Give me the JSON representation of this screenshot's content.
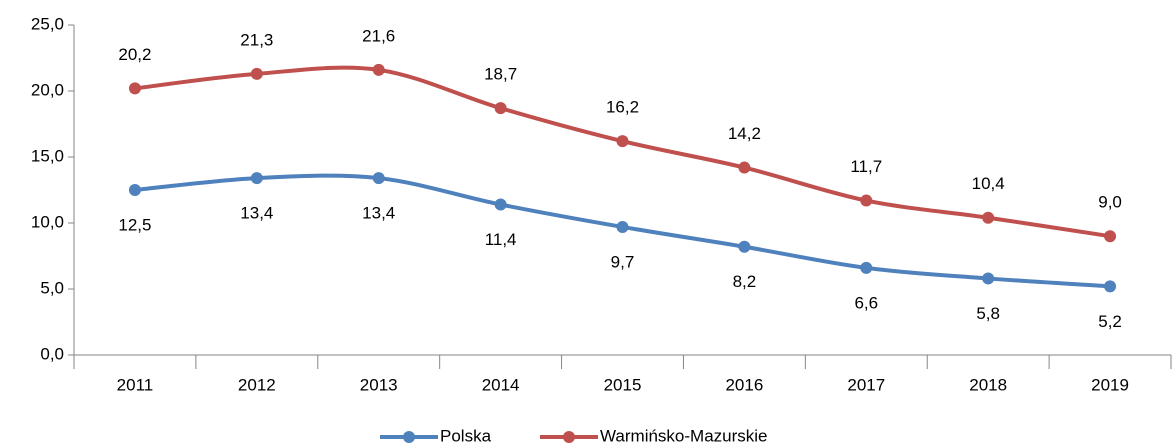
{
  "chart_data": {
    "type": "line",
    "categories": [
      "2011",
      "2012",
      "2013",
      "2014",
      "2015",
      "2016",
      "2017",
      "2018",
      "2019"
    ],
    "series": [
      {
        "name": "Polska",
        "color": "#4f81bd",
        "values": [
          12.5,
          13.4,
          13.4,
          11.4,
          9.7,
          8.2,
          6.6,
          5.8,
          5.2
        ],
        "value_labels": [
          "12,5",
          "13,4",
          "13,4",
          "11,4",
          "9,7",
          "8,2",
          "6,6",
          "5,8",
          "5,2"
        ]
      },
      {
        "name": "Warmińsko-Mazurskie",
        "color": "#c0504d",
        "values": [
          20.2,
          21.3,
          21.6,
          18.7,
          16.2,
          14.2,
          11.7,
          10.4,
          9.0
        ],
        "value_labels": [
          "20,2",
          "21,3",
          "21,6",
          "18,7",
          "16,2",
          "14,2",
          "11,7",
          "10,4",
          "9,0"
        ]
      }
    ],
    "ylim": [
      0,
      25
    ],
    "yticks": [
      {
        "value": 0,
        "label": "0,0"
      },
      {
        "value": 5,
        "label": "5,0"
      },
      {
        "value": 10,
        "label": "10,0"
      },
      {
        "value": 15,
        "label": "15,0"
      },
      {
        "value": 20,
        "label": "20,0"
      },
      {
        "value": 25,
        "label": "25,0"
      }
    ],
    "legend": "bottom"
  }
}
